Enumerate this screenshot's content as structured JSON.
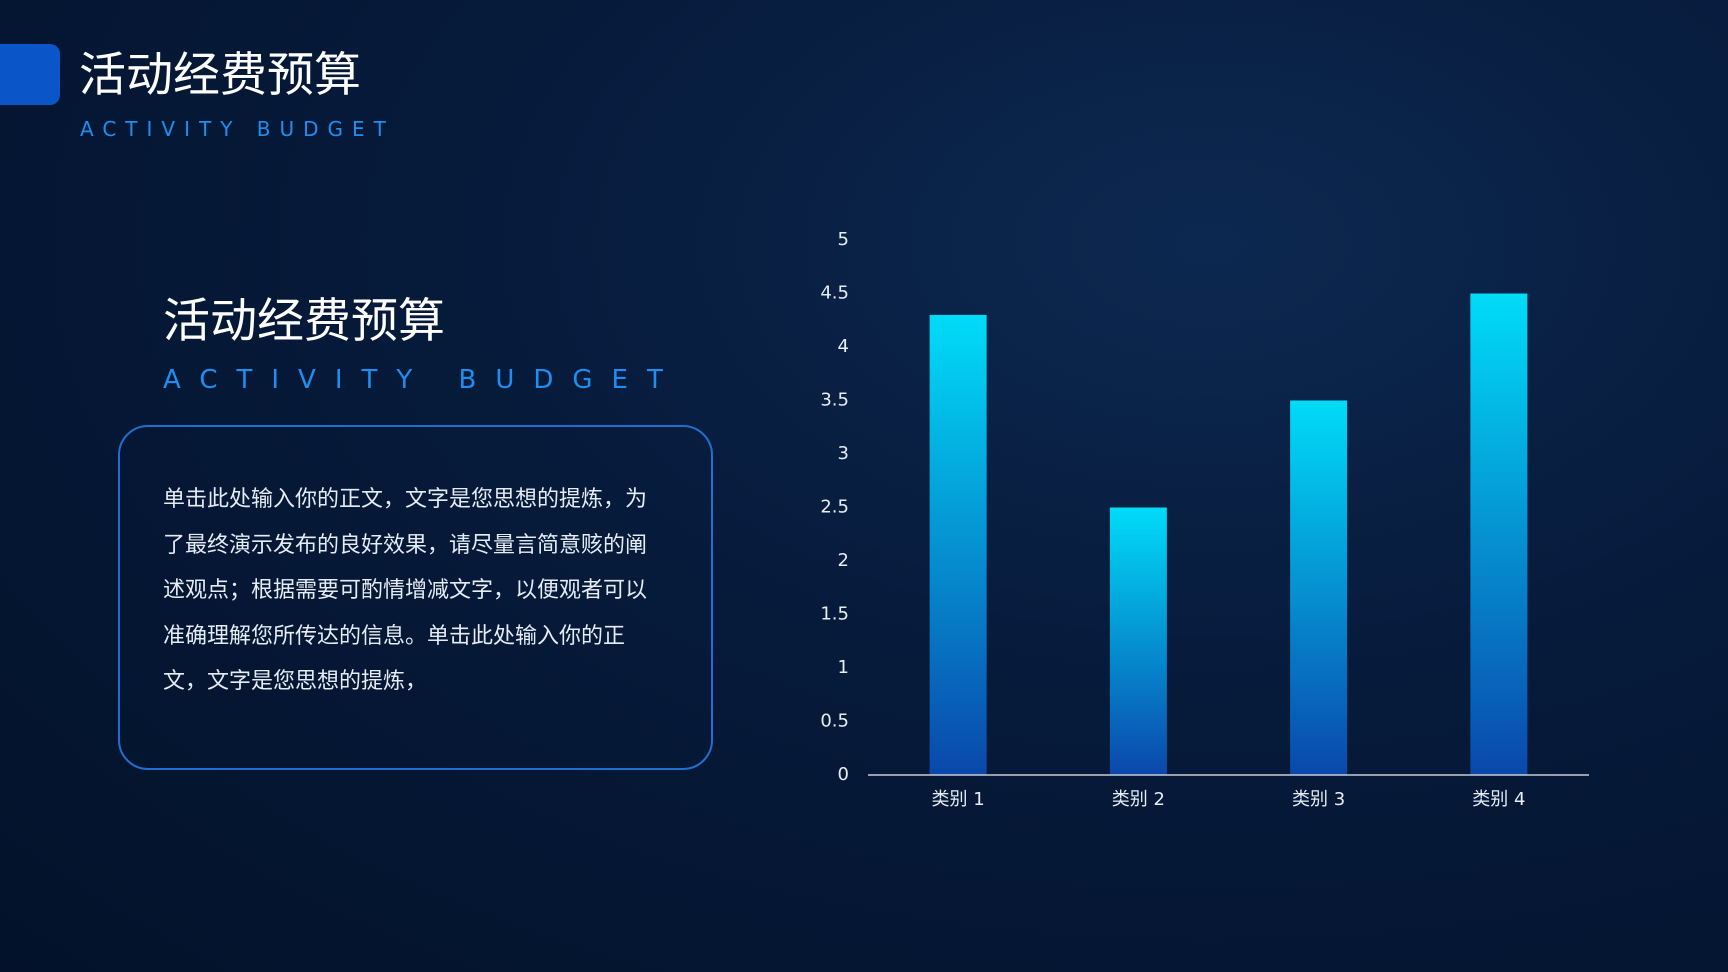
{
  "header": {
    "title": "活动经费预算",
    "subtitle": "ACTIVITY BUDGET"
  },
  "section": {
    "title": "活动经费预算",
    "subtitle": "ACTIVITY BUDGET",
    "body": "单击此处输入你的正文，文字是您思想的提炼，为了最终演示发布的良好效果，请尽量言简意赅的阐述观点；根据需要可酌情增减文字，以便观者可以准确理解您所传达的信息。单击此处输入你的正文，文字是您思想的提炼，"
  },
  "chart_data": {
    "type": "bar",
    "categories": [
      "类别 1",
      "类别 2",
      "类别 3",
      "类别 4"
    ],
    "values": [
      4.3,
      2.5,
      3.5,
      4.5
    ],
    "gradient": [
      "#00dcf8",
      "#0a48ab"
    ],
    "ylim": [
      0,
      5
    ],
    "yticks": [
      0,
      0.5,
      1,
      1.5,
      2,
      2.5,
      3,
      3.5,
      4,
      4.5,
      5
    ],
    "grid": false
  }
}
